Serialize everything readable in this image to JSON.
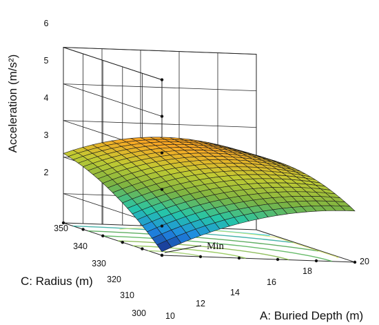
{
  "chart_data": {
    "type": "surface3d",
    "zlabel": "Acceleration (m/s²)",
    "xlabel": "A: Buried Depth (m)",
    "ylabel": "C: Radius (m)",
    "z_ticks": [
      "2",
      "3",
      "4",
      "5",
      "6"
    ],
    "x_ticks": [
      "10",
      "12",
      "14",
      "16",
      "18",
      "20"
    ],
    "y_ticks": [
      "300",
      "310",
      "320",
      "330",
      "340",
      "350"
    ],
    "zlim": [
      1.2,
      6
    ],
    "xlim": [
      10,
      20
    ],
    "ylim": [
      300,
      350
    ],
    "surface_corners": {
      "depth10_radius300": 1.3,
      "depth10_radius350": 3.1,
      "depth20_radius300": 2.6,
      "depth20_radius350": 3.2
    },
    "peak": {
      "depth": 17.5,
      "radius": 340,
      "acceleration": 3.9
    },
    "annotation": "Min",
    "grid": true,
    "colormap": [
      "#1a237e",
      "#1e88e5",
      "#26c6a8",
      "#7cb342",
      "#c0ca33",
      "#f9a825",
      "#e68a00"
    ]
  }
}
